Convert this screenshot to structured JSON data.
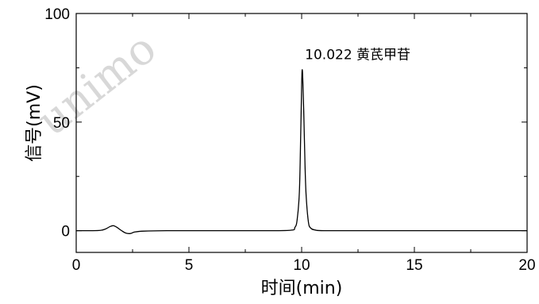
{
  "watermark": "unimo",
  "chart_data": {
    "type": "line",
    "title": "",
    "xlabel": "时间(min)",
    "ylabel": "信号(mV)",
    "xlim": [
      0,
      20
    ],
    "ylim": [
      -10,
      100
    ],
    "x_ticks": [
      "0",
      "5",
      "10",
      "15",
      "20"
    ],
    "y_ticks": [
      "0",
      "50",
      "100"
    ],
    "grid": false,
    "line_color": "#000000",
    "annotations": [
      {
        "text": "10.022 黄芪甲苷",
        "x": 10.022,
        "y": 79
      }
    ],
    "series": [
      {
        "x": [
          0,
          1.0,
          1.3,
          1.5,
          1.65,
          1.8,
          2.0,
          2.2,
          2.4,
          2.6,
          3.0,
          4.0,
          6.0,
          8.0,
          9.5,
          9.7,
          9.8,
          9.9,
          9.96,
          10.0,
          10.022,
          10.05,
          10.1,
          10.15,
          10.2,
          10.3,
          10.4,
          10.6,
          11.0,
          13.0,
          16.0,
          20.0
        ],
        "y": [
          0,
          0.1,
          0.8,
          1.9,
          2.3,
          1.6,
          0.1,
          -1.1,
          -1.3,
          -0.6,
          -0.2,
          0,
          0,
          0,
          0.2,
          1.5,
          5,
          18,
          45,
          67,
          74,
          70,
          52,
          30,
          16,
          4,
          1.2,
          0.3,
          0,
          0,
          0,
          0
        ]
      }
    ]
  }
}
